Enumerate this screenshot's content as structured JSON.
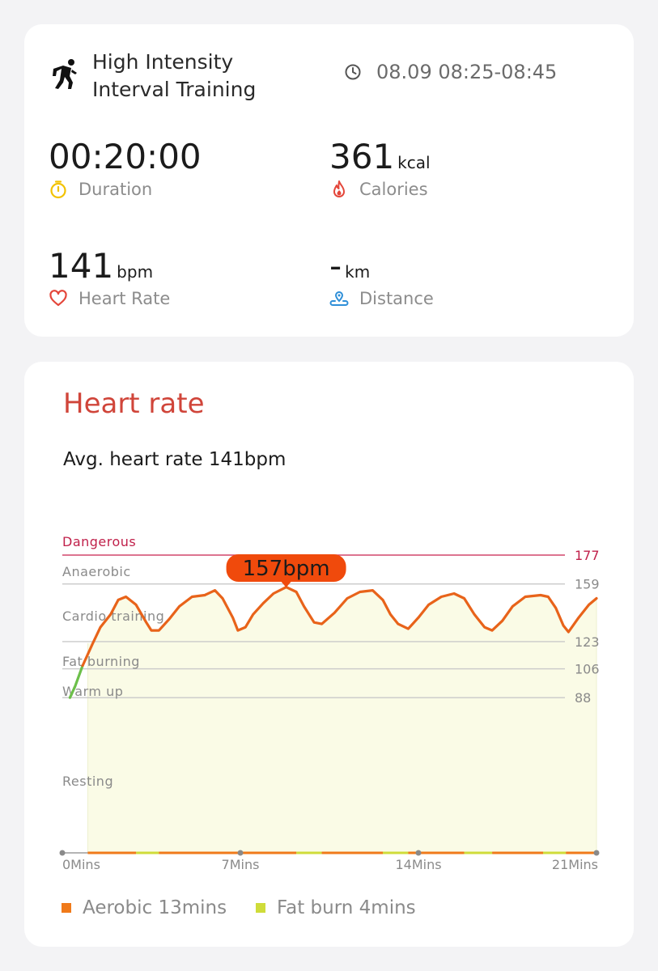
{
  "summary": {
    "workout_icon": "running-person-icon",
    "workout_title_line1": "High Intensity",
    "workout_title_line2": "Interval Training",
    "time_icon": "clock-icon",
    "time_range": "08.09 08:25-08:45",
    "duration": {
      "value": "00:20:00",
      "unit": "",
      "label": "Duration",
      "icon": "stopwatch-icon",
      "icon_color": "#f2c200"
    },
    "calories": {
      "value": "361",
      "unit": "kcal",
      "label": "Calories",
      "icon": "flame-icon",
      "icon_color": "#e4463a"
    },
    "heart_rate": {
      "value": "141",
      "unit": "bpm",
      "label": "Heart Rate",
      "icon": "heart-icon",
      "icon_color": "#e4463a"
    },
    "distance": {
      "value": "-",
      "unit": "km",
      "label": "Distance",
      "icon": "location-pin-icon",
      "icon_color": "#2f8fd8"
    }
  },
  "heart_rate_card": {
    "title": "Heart rate",
    "average": "Avg. heart rate 141bpm",
    "peak_label": "157bpm",
    "legend": [
      {
        "label": "Aerobic 13mins",
        "color": "#f07a1a"
      },
      {
        "label": "Fat burn 4mins",
        "color": "#cfdc3a"
      }
    ]
  },
  "chart_data": {
    "type": "line",
    "title": "",
    "xlabel": "",
    "ylabel": "",
    "x_ticks": [
      "0Mins",
      "7Mins",
      "14Mins",
      "21Mins"
    ],
    "x_range": [
      0,
      21
    ],
    "zones": [
      {
        "name": "Dangerous",
        "threshold": 177
      },
      {
        "name": "Anaerobic",
        "threshold": 159
      },
      {
        "name": "Cardio training",
        "threshold": 123
      },
      {
        "name": "Fat burning",
        "threshold": 106
      },
      {
        "name": "Warm up",
        "threshold": 88
      },
      {
        "name": "Resting",
        "threshold": null
      }
    ],
    "series": [
      {
        "values": [
          [
            0.3,
            88
          ],
          [
            0.5,
            95
          ],
          [
            0.8,
            108
          ],
          [
            1.2,
            122
          ],
          [
            1.5,
            132
          ],
          [
            1.9,
            140
          ],
          [
            2.2,
            149
          ],
          [
            2.5,
            151
          ],
          [
            2.9,
            146
          ],
          [
            3.3,
            135
          ],
          [
            3.5,
            130
          ],
          [
            3.8,
            130
          ],
          [
            4.2,
            137
          ],
          [
            4.6,
            145
          ],
          [
            5.1,
            151
          ],
          [
            5.6,
            152
          ],
          [
            6.0,
            155
          ],
          [
            6.3,
            150
          ],
          [
            6.7,
            138
          ],
          [
            6.9,
            130
          ],
          [
            7.2,
            132
          ],
          [
            7.5,
            140
          ],
          [
            7.9,
            147
          ],
          [
            8.3,
            153
          ],
          [
            8.8,
            157
          ],
          [
            9.2,
            154
          ],
          [
            9.5,
            145
          ],
          [
            9.9,
            135
          ],
          [
            10.2,
            134
          ],
          [
            10.7,
            141
          ],
          [
            11.2,
            150
          ],
          [
            11.7,
            154
          ],
          [
            12.2,
            155
          ],
          [
            12.6,
            149
          ],
          [
            12.9,
            140
          ],
          [
            13.2,
            134
          ],
          [
            13.6,
            131
          ],
          [
            14.0,
            138
          ],
          [
            14.4,
            146
          ],
          [
            14.9,
            151
          ],
          [
            15.4,
            153
          ],
          [
            15.8,
            150
          ],
          [
            16.2,
            140
          ],
          [
            16.6,
            132
          ],
          [
            16.9,
            130
          ],
          [
            17.3,
            136
          ],
          [
            17.7,
            145
          ],
          [
            18.2,
            151
          ],
          [
            18.8,
            152
          ],
          [
            19.1,
            151
          ],
          [
            19.4,
            144
          ],
          [
            19.7,
            133
          ],
          [
            19.9,
            129
          ],
          [
            20.3,
            138
          ],
          [
            20.7,
            146
          ],
          [
            21.0,
            150
          ]
        ]
      }
    ],
    "zone_bar": [
      {
        "zone": "Aerobic",
        "from": 1.0,
        "to": 2.9
      },
      {
        "zone": "Fat burn",
        "from": 2.9,
        "to": 3.8
      },
      {
        "zone": "Aerobic",
        "from": 3.8,
        "to": 9.2
      },
      {
        "zone": "Fat burn",
        "from": 9.2,
        "to": 10.2
      },
      {
        "zone": "Aerobic",
        "from": 10.2,
        "to": 12.6
      },
      {
        "zone": "Fat burn",
        "from": 12.6,
        "to": 13.6
      },
      {
        "zone": "Aerobic",
        "from": 13.6,
        "to": 15.8
      },
      {
        "zone": "Fat burn",
        "from": 15.8,
        "to": 16.9
      },
      {
        "zone": "Aerobic",
        "from": 16.9,
        "to": 18.9
      },
      {
        "zone": "Fat burn",
        "from": 18.9,
        "to": 19.8
      },
      {
        "zone": "Aerobic",
        "from": 19.8,
        "to": 21.0
      }
    ],
    "peak": {
      "x": 8.8,
      "y": 157
    },
    "grid": true
  }
}
